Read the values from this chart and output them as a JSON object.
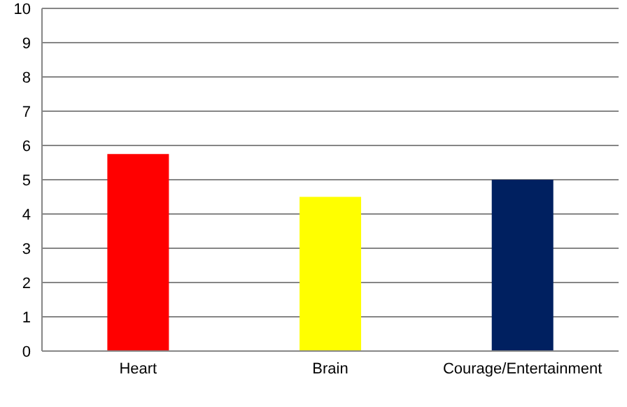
{
  "chart_data": {
    "type": "bar",
    "categories": [
      "Heart",
      "Brain",
      "Courage/Entertainment"
    ],
    "values": [
      5.75,
      4.5,
      5
    ],
    "colors": [
      "#ff0000",
      "#ffff00",
      "#002060"
    ],
    "ylim": [
      0,
      10
    ],
    "yticks": [
      0,
      1,
      2,
      3,
      4,
      5,
      6,
      7,
      8,
      9,
      10
    ],
    "grid": "y"
  }
}
